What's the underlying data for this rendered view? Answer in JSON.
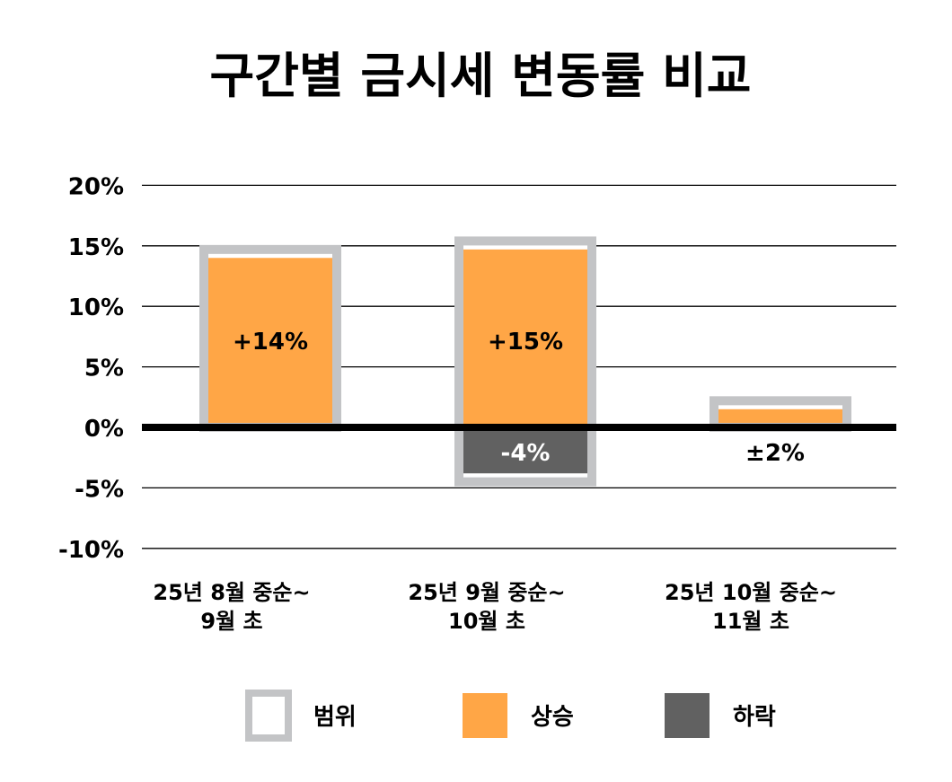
{
  "chart_data": {
    "type": "bar",
    "title": "구간별 금시세 변동률 비교",
    "xlabel": "",
    "ylabel": "",
    "ylim": [
      -10,
      20
    ],
    "yticks": [
      20,
      15,
      10,
      5,
      0,
      -5,
      -10
    ],
    "ytick_labels": [
      "20%",
      "15%",
      "10%",
      "5%",
      "0%",
      "-5%",
      "-10%"
    ],
    "grid": true,
    "categories": [
      {
        "line1": "25년 8월 중순~",
        "line2": "9월 초"
      },
      {
        "line1": "25년 9월 중순~",
        "line2": "10월 초"
      },
      {
        "line1": "25년 10월 중순~",
        "line2": "11월 초"
      }
    ],
    "series": [
      {
        "name": "범위",
        "color": "#c3c4c6",
        "values": [
          [
            0,
            14.7
          ],
          [
            -4.5,
            15.4
          ],
          [
            0,
            2.2
          ]
        ]
      },
      {
        "name": "상승",
        "color": "#ffa646",
        "values": [
          14,
          14.7,
          1.5
        ]
      },
      {
        "name": "하락",
        "color": "#616161",
        "values": [
          0,
          -3.8,
          0
        ]
      }
    ],
    "data_labels": [
      "+14%",
      "+15%",
      "-4%",
      "±2%"
    ],
    "legend": {
      "placement": "bottom",
      "items": [
        "범위",
        "상승",
        "하락"
      ]
    }
  }
}
